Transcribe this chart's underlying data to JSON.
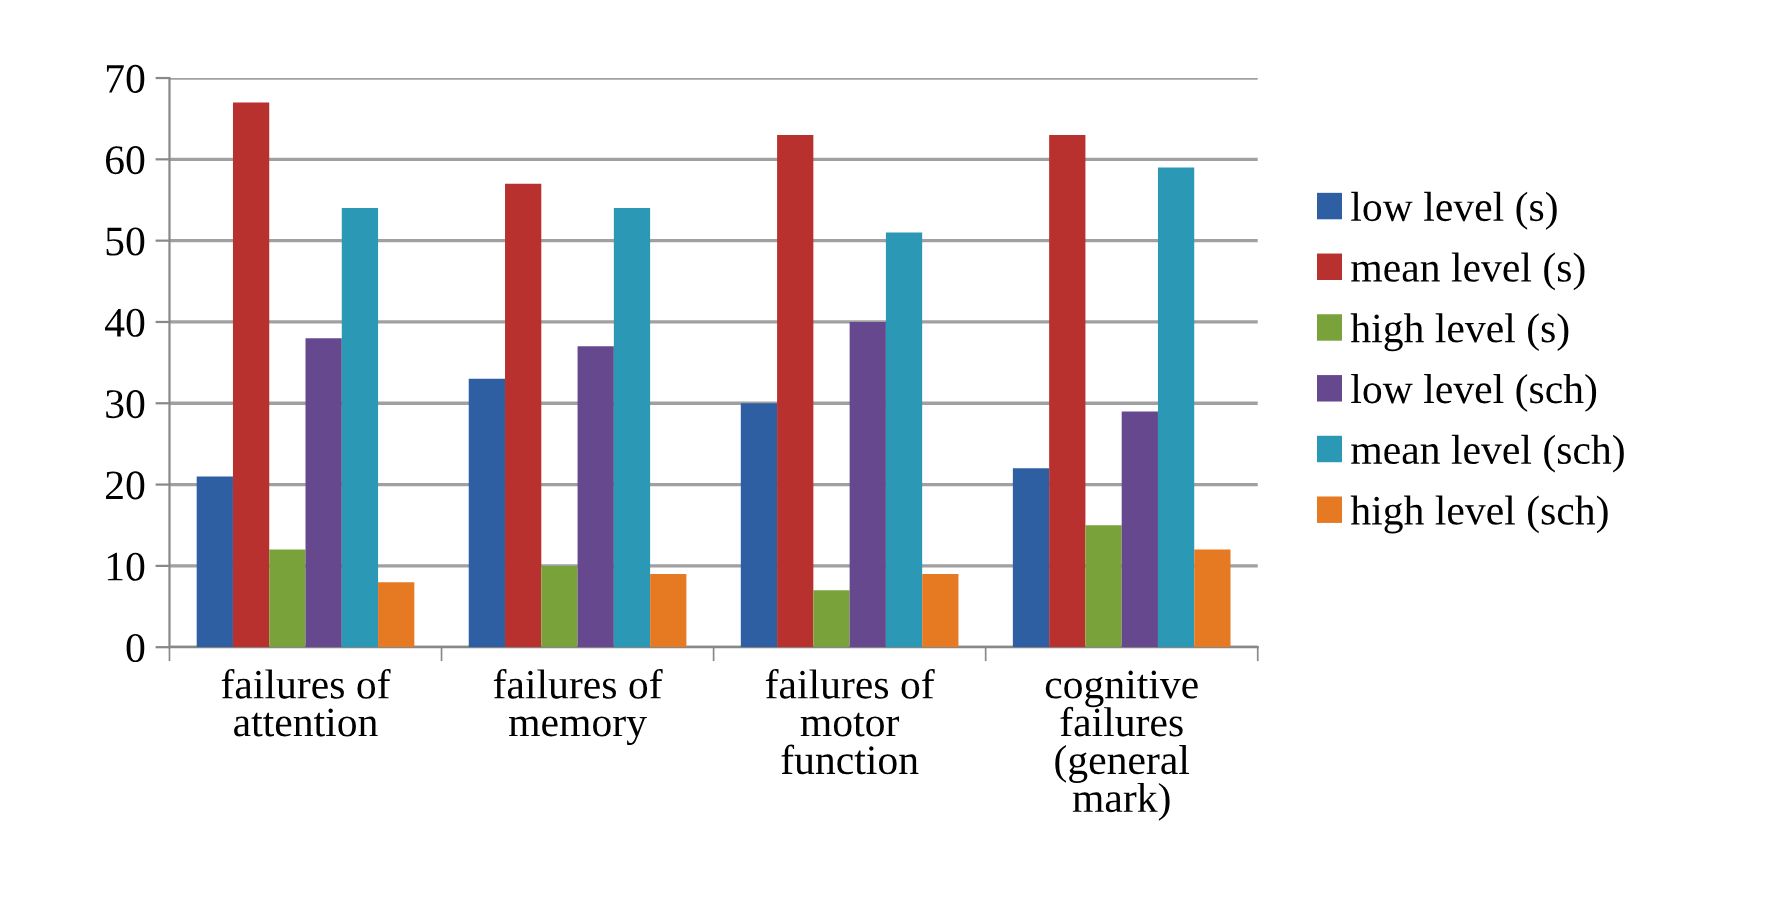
{
  "chart_data": {
    "type": "bar",
    "categories": [
      "failures of\nattention",
      "failures of\nmemory",
      "failures of\nmotor\nfunction",
      "cognitive\nfailures\n(general\nmark)"
    ],
    "series": [
      {
        "name": "low level (s)",
        "color": "#2e5fa3",
        "values": [
          21,
          33,
          30,
          22
        ]
      },
      {
        "name": "mean level (s)",
        "color": "#b8312f",
        "values": [
          67,
          57,
          63,
          63
        ]
      },
      {
        "name": "high level (s)",
        "color": "#79a33a",
        "values": [
          12,
          10,
          7,
          15
        ]
      },
      {
        "name": "low level (sch)",
        "color": "#66488f",
        "values": [
          38,
          37,
          40,
          29
        ]
      },
      {
        "name": "mean level (sch)",
        "color": "#2b99b5",
        "values": [
          54,
          54,
          51,
          59
        ]
      },
      {
        "name": "high level (sch)",
        "color": "#e67a22",
        "values": [
          8,
          9,
          9,
          12
        ]
      }
    ],
    "ylim": [
      0,
      70
    ],
    "yticks": [
      0,
      10,
      20,
      30,
      40,
      50,
      60,
      70
    ],
    "grid": "y",
    "legend": "right"
  }
}
